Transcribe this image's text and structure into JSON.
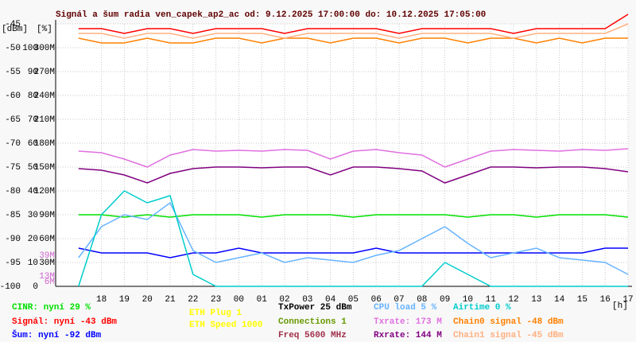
{
  "chart_data": {
    "type": "line",
    "title": "Signál a šum radia ven_capek_ap2_ac od: 9.12.2025 17:00:00 do: 10.12.2025 17:05:00",
    "ylabel": "[dBm]",
    "y2label": "[%]",
    "xlabel": "[h]",
    "x": [
      0,
      1,
      2,
      3,
      4,
      5,
      6,
      7,
      8,
      9,
      10,
      11,
      12,
      13,
      14,
      15,
      16,
      17,
      18,
      19,
      20,
      21,
      22,
      23,
      24
    ],
    "xlim": [
      -1,
      24
    ],
    "xticks": [
      {
        "value": 1,
        "label": "18"
      },
      {
        "value": 2,
        "label": "19"
      },
      {
        "value": 3,
        "label": "20"
      },
      {
        "value": 4,
        "label": "21"
      },
      {
        "value": 5,
        "label": "22"
      },
      {
        "value": 6,
        "label": "23"
      },
      {
        "value": 7,
        "label": "00"
      },
      {
        "value": 8,
        "label": "01"
      },
      {
        "value": 9,
        "label": "02"
      },
      {
        "value": 10,
        "label": "03"
      },
      {
        "value": 11,
        "label": "04"
      },
      {
        "value": 12,
        "label": "05"
      },
      {
        "value": 13,
        "label": "06"
      },
      {
        "value": 14,
        "label": "07"
      },
      {
        "value": 15,
        "label": "08"
      },
      {
        "value": 16,
        "label": "09"
      },
      {
        "value": 17,
        "label": "10"
      },
      {
        "value": 18,
        "label": "11"
      },
      {
        "value": 19,
        "label": "12"
      },
      {
        "value": 20,
        "label": "13"
      },
      {
        "value": 21,
        "label": "14"
      },
      {
        "value": 22,
        "label": "15"
      },
      {
        "value": 23,
        "label": "16"
      },
      {
        "value": 24,
        "label": "17"
      }
    ],
    "ylim": [
      -100,
      -45
    ],
    "yticks": [
      -100,
      -95,
      -90,
      -85,
      -80,
      -75,
      -70,
      -65,
      -60,
      -55,
      -50,
      -45
    ],
    "y2lim": [
      0,
      110
    ],
    "y2ticks": [
      0,
      10,
      20,
      30,
      40,
      50,
      60,
      70,
      80,
      90,
      100
    ],
    "y3lim": [
      0,
      330
    ],
    "y3ticks": [
      {
        "value": 30,
        "label": "30M"
      },
      {
        "value": 60,
        "label": "60M"
      },
      {
        "value": 90,
        "label": "90M"
      },
      {
        "value": 120,
        "label": "120M"
      },
      {
        "value": 150,
        "label": "150M"
      },
      {
        "value": 180,
        "label": "180M"
      },
      {
        "value": 210,
        "label": "210M"
      },
      {
        "value": 240,
        "label": "240M"
      },
      {
        "value": 270,
        "label": "270M"
      },
      {
        "value": 300,
        "label": "300M"
      }
    ],
    "annotations": [
      {
        "value": 39,
        "label": "39M"
      },
      {
        "value": 13,
        "label": "13M"
      },
      {
        "value": 6,
        "label": "6M"
      }
    ],
    "grid": true,
    "series": [
      {
        "name": "CINR: nyní 29 %",
        "color": "#00e000",
        "axis": "y2",
        "values": [
          30,
          30,
          29,
          30,
          29,
          30,
          30,
          30,
          29,
          30,
          30,
          30,
          29,
          30,
          30,
          30,
          30,
          29,
          30,
          30,
          29,
          30,
          30,
          30,
          29
        ]
      },
      {
        "name": "Signál: nyní -43 dBm",
        "color": "#ff0000",
        "values": [
          -46,
          -46,
          -47,
          -46,
          -46,
          -47,
          -46,
          -46,
          -46,
          -47,
          -46,
          -46,
          -46,
          -46,
          -47,
          -46,
          -46,
          -46,
          -46,
          -47,
          -46,
          -46,
          -46,
          -46,
          -43
        ]
      },
      {
        "name": "Šum: nyní -92 dBm",
        "color": "#0000ff",
        "values": [
          -92,
          -93,
          -93,
          -93,
          -94,
          -93,
          -93,
          -92,
          -93,
          -93,
          -93,
          -93,
          -93,
          -92,
          -93,
          -93,
          -93,
          -93,
          -93,
          -93,
          -93,
          -93,
          -93,
          -92,
          -92
        ]
      },
      {
        "name": "CPU load 5 %",
        "color": "#66b3ff",
        "axis": "y2",
        "values": [
          12,
          25,
          30,
          28,
          35,
          15,
          10,
          12,
          14,
          10,
          12,
          11,
          10,
          13,
          15,
          20,
          25,
          18,
          12,
          14,
          16,
          12,
          11,
          10,
          5
        ]
      },
      {
        "name": "Txrate: 173 M",
        "color": "#e070e0",
        "axis": "y3",
        "values": [
          170,
          168,
          160,
          150,
          165,
          172,
          170,
          171,
          170,
          172,
          171,
          160,
          170,
          172,
          168,
          165,
          150,
          160,
          170,
          172,
          171,
          170,
          172,
          171,
          173
        ]
      },
      {
        "name": "Rxrate: 144 M",
        "color": "#800080",
        "axis": "y3",
        "values": [
          148,
          146,
          140,
          130,
          142,
          148,
          150,
          150,
          149,
          150,
          150,
          140,
          150,
          150,
          148,
          145,
          130,
          140,
          150,
          150,
          149,
          150,
          150,
          148,
          144
        ]
      },
      {
        "name": "Airtime 0 %",
        "color": "#00cccc",
        "axis": "y2",
        "values": [
          0,
          30,
          40,
          35,
          38,
          5,
          0,
          0,
          0,
          0,
          0,
          0,
          0,
          0,
          0,
          0,
          10,
          5,
          0,
          0,
          0,
          0,
          0,
          0,
          0
        ]
      },
      {
        "name": "Chain0 signal -48 dBm",
        "color": "#ff8000",
        "values": [
          -48,
          -49,
          -49,
          -48,
          -49,
          -49,
          -48,
          -48,
          -49,
          -48,
          -48,
          -49,
          -48,
          -48,
          -49,
          -48,
          -48,
          -49,
          -48,
          -48,
          -49,
          -48,
          -49,
          -48,
          -48
        ]
      },
      {
        "name": "Chain1 signal -45 dBm",
        "color": "#ffb080",
        "values": [
          -47,
          -47,
          -48,
          -47,
          -47,
          -48,
          -47,
          -47,
          -47,
          -48,
          -47,
          -47,
          -47,
          -47,
          -48,
          -47,
          -47,
          -47,
          -47,
          -48,
          -47,
          -47,
          -47,
          -47,
          -45
        ]
      }
    ],
    "status": [
      {
        "text": "ETH Plug 1",
        "color": "#ffff00"
      },
      {
        "text": "ETH Speed 1000",
        "color": "#ffff00"
      },
      {
        "text": "TxPower 25 dBm",
        "color": "#000000"
      },
      {
        "text": "Connections 1",
        "color": "#669900"
      },
      {
        "text": "Freq 5600 MHz",
        "color": "#a0304a"
      }
    ]
  }
}
